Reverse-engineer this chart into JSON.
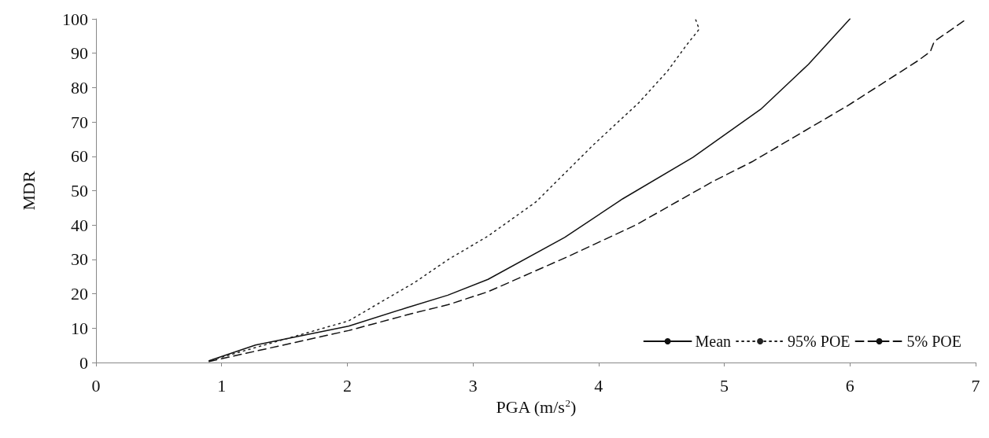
{
  "chart_data": {
    "type": "line",
    "xlabel": "PGA (m/s$^{2}$)",
    "ylabel": "MDR",
    "xlim": [
      0,
      7
    ],
    "xticks": [
      0,
      1,
      2,
      3,
      4,
      5,
      6,
      7
    ],
    "ylim": [
      0,
      100
    ],
    "yticks": [
      0,
      10,
      20,
      30,
      40,
      50,
      60,
      70,
      80,
      90,
      100
    ],
    "grid": false,
    "legend": "bottom right",
    "marker": "none",
    "series": [
      {
        "name": "Mean",
        "color": "#111111",
        "line_style": "solid",
        "x": [
          0.9,
          1.27,
          2.01,
          2.47,
          2.8,
          3.12,
          3.73,
          4.19,
          4.75,
          5.29,
          5.67,
          6.0
        ],
        "values": [
          0.5,
          5.1,
          10.6,
          15.9,
          19.6,
          24.2,
          36.4,
          47.6,
          59.7,
          73.7,
          86.8,
          100
        ]
      },
      {
        "name": "95% POE",
        "color": "#222222",
        "line_style": "dotted",
        "x": [
          0.92,
          2.01,
          2.54,
          2.8,
          3.12,
          3.5,
          3.96,
          4.32,
          4.55,
          4.7,
          4.8,
          4.77
        ],
        "values": [
          0.7,
          12.1,
          23.4,
          29.9,
          36.8,
          46.7,
          63.4,
          75.6,
          84.9,
          92.4,
          97.0,
          100
        ]
      },
      {
        "name": "5% POE",
        "color": "#111111",
        "line_style": "dashed",
        "x": [
          0.9,
          2.01,
          2.54,
          2.8,
          3.12,
          3.76,
          4.3,
          4.91,
          5.22,
          5.98,
          6.54,
          6.64,
          6.67,
          6.93
        ],
        "values": [
          0.3,
          9.3,
          14.5,
          16.8,
          20.6,
          30.9,
          40.1,
          52.7,
          58.4,
          74.7,
          87.8,
          90.5,
          93.4,
          100
        ]
      }
    ]
  }
}
